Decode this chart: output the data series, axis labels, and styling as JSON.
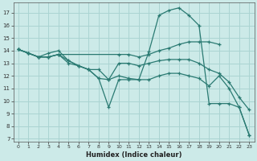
{
  "bg_color": "#cceae8",
  "grid_color": "#aad4d2",
  "line_color": "#2a7a72",
  "xlabel": "Humidex (Indice chaleur)",
  "xlim": [
    -0.5,
    23.5
  ],
  "ylim": [
    6.8,
    17.8
  ],
  "yticks": [
    7,
    8,
    9,
    10,
    11,
    12,
    13,
    14,
    15,
    16,
    17
  ],
  "xticks": [
    0,
    1,
    2,
    3,
    4,
    5,
    6,
    7,
    8,
    9,
    10,
    11,
    12,
    13,
    14,
    15,
    16,
    17,
    18,
    19,
    20,
    21,
    22,
    23
  ],
  "lines": [
    {
      "x": [
        0,
        1,
        2,
        3,
        4,
        5,
        6,
        7,
        8,
        9,
        10,
        11,
        12,
        13,
        14,
        15,
        16,
        17,
        18,
        19,
        20,
        21,
        22,
        23
      ],
      "y": [
        14.1,
        13.8,
        13.5,
        13.8,
        14.0,
        13.2,
        12.8,
        12.5,
        11.8,
        9.5,
        11.7,
        11.7,
        11.7,
        13.9,
        16.8,
        17.2,
        17.4,
        16.8,
        16.0,
        9.8,
        9.8,
        9.8,
        9.5,
        7.3
      ]
    },
    {
      "x": [
        0,
        1,
        2,
        3,
        4,
        10,
        11,
        12,
        13,
        14,
        15,
        16,
        17,
        18,
        19,
        20
      ],
      "y": [
        14.1,
        13.8,
        13.5,
        13.5,
        13.7,
        13.7,
        13.7,
        13.5,
        13.7,
        14.0,
        14.2,
        14.5,
        14.7,
        14.7,
        14.7,
        14.5
      ]
    },
    {
      "x": [
        0,
        1,
        2,
        3,
        4,
        5,
        6,
        7,
        8,
        9,
        10,
        11,
        12,
        13,
        14,
        15,
        16,
        17,
        18,
        19,
        20,
        21,
        22,
        23
      ],
      "y": [
        14.1,
        13.8,
        13.5,
        13.5,
        13.7,
        13.2,
        12.8,
        12.5,
        12.5,
        11.7,
        13.0,
        13.0,
        12.8,
        13.0,
        13.2,
        13.3,
        13.3,
        13.3,
        13.0,
        12.5,
        12.2,
        11.5,
        10.3,
        9.3
      ]
    },
    {
      "x": [
        0,
        1,
        2,
        3,
        4,
        5,
        6,
        7,
        8,
        9,
        10,
        11,
        12,
        13,
        14,
        15,
        16,
        17,
        18,
        19,
        20,
        21,
        22,
        23
      ],
      "y": [
        14.1,
        13.8,
        13.5,
        13.5,
        13.7,
        13.0,
        12.8,
        12.5,
        11.8,
        11.7,
        12.0,
        11.8,
        11.7,
        11.7,
        12.0,
        12.2,
        12.2,
        12.0,
        11.8,
        11.2,
        12.0,
        11.0,
        9.5,
        7.3
      ]
    }
  ]
}
